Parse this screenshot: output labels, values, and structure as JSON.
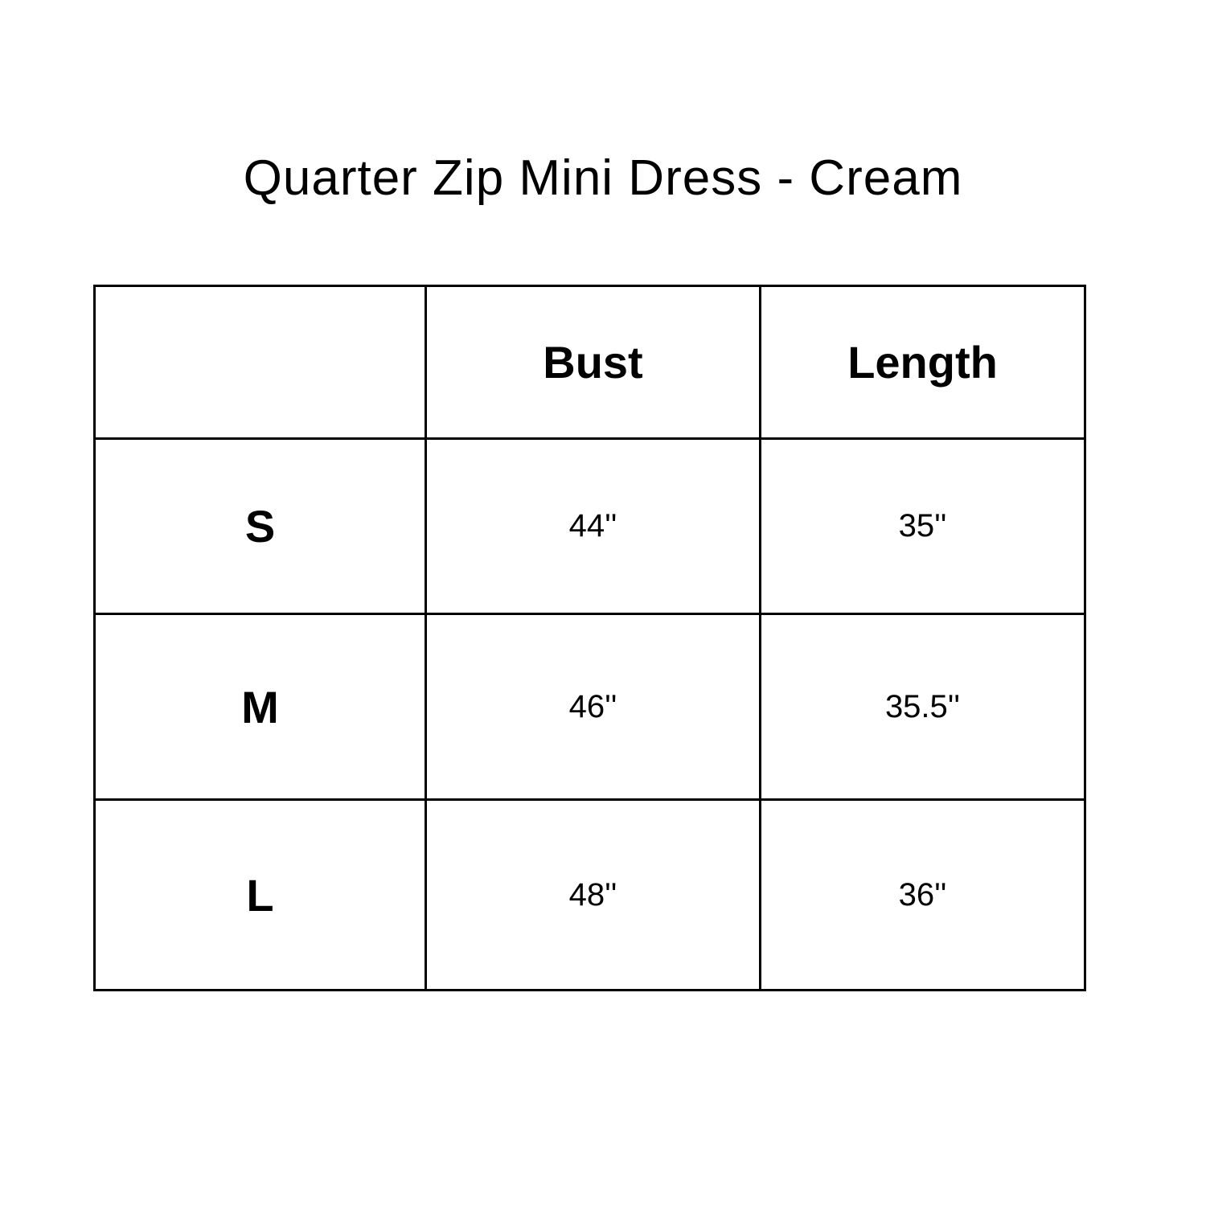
{
  "title": "Quarter Zip Mini Dress - Cream",
  "table": {
    "headers": [
      "",
      "Bust",
      "Length"
    ],
    "rows": [
      {
        "size": "S",
        "bust": "44''",
        "length": "35''"
      },
      {
        "size": "M",
        "bust": "46''",
        "length": "35.5''"
      },
      {
        "size": "L",
        "bust": "48''",
        "length": "36''"
      }
    ]
  },
  "colors": {
    "text": "#000000",
    "border": "#000000",
    "background": "#ffffff"
  }
}
